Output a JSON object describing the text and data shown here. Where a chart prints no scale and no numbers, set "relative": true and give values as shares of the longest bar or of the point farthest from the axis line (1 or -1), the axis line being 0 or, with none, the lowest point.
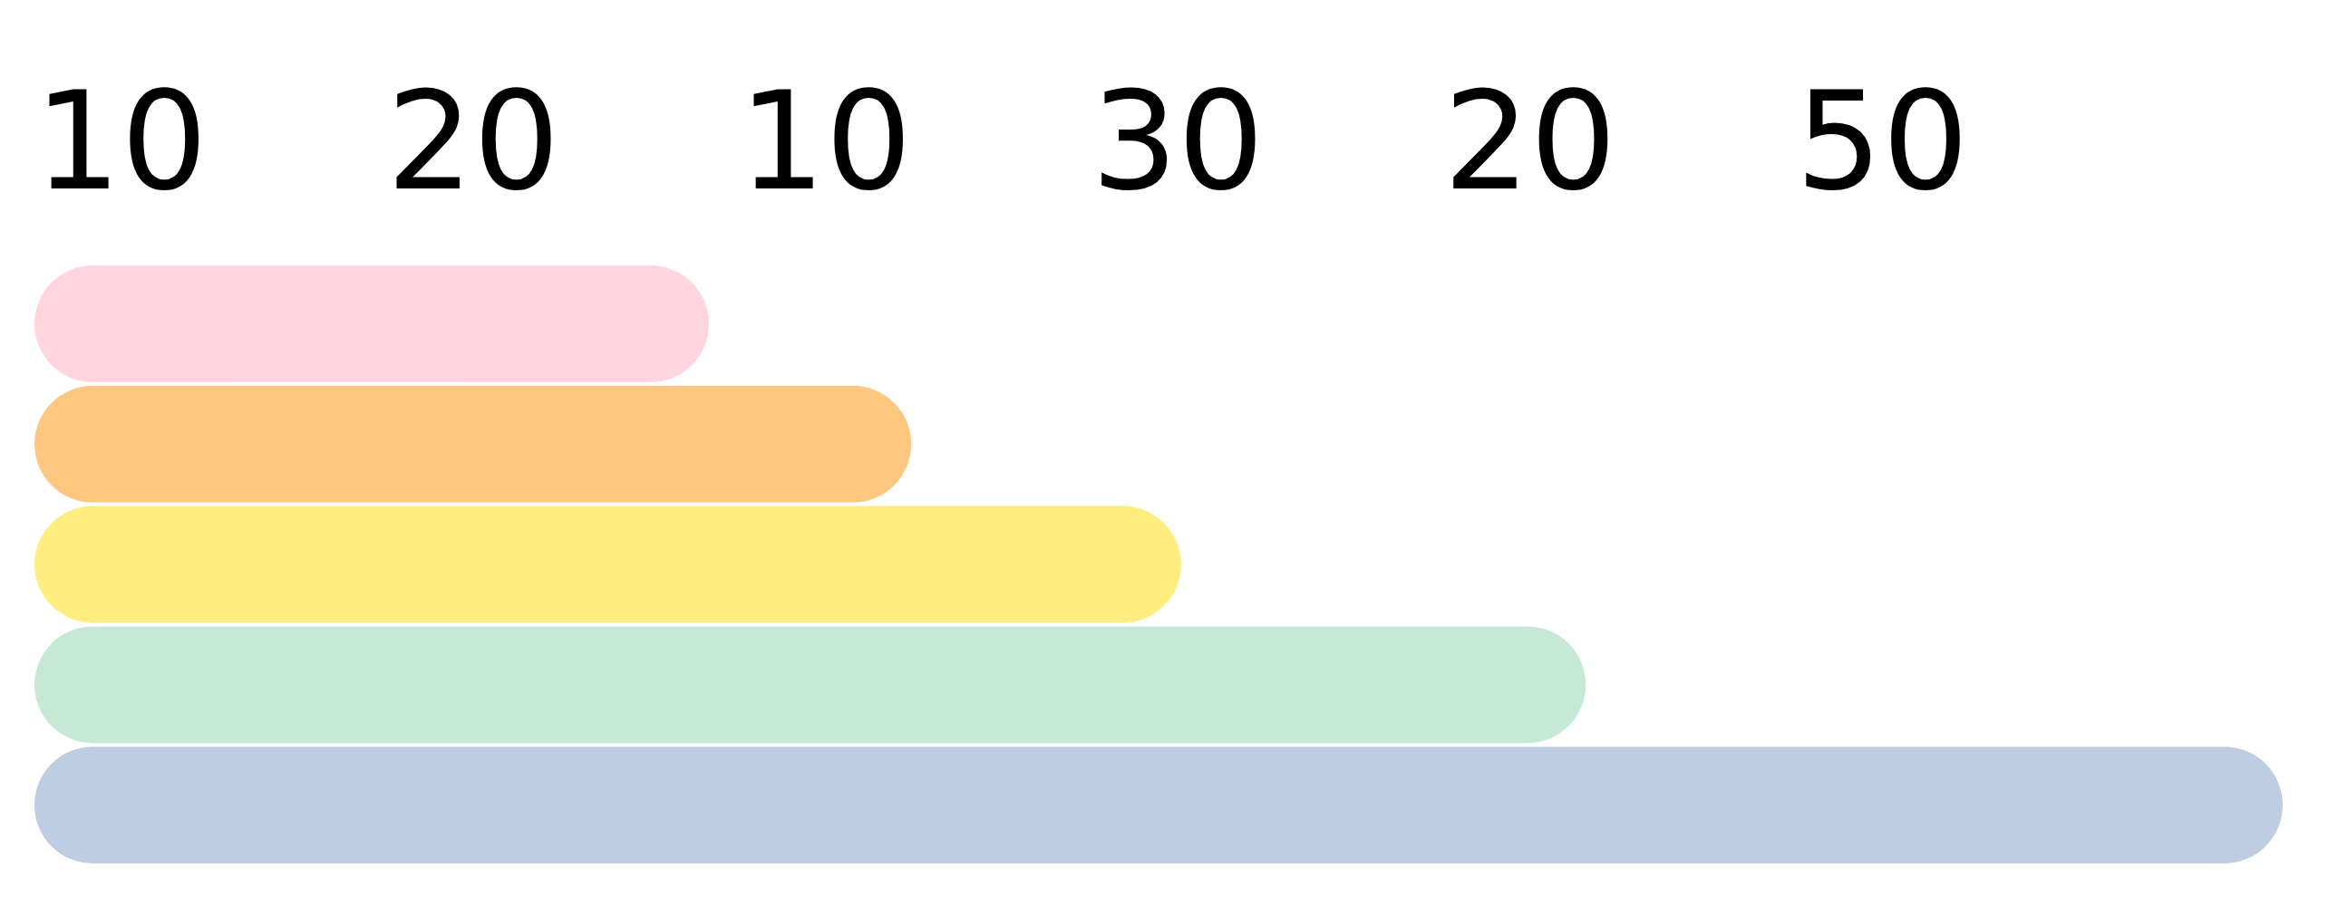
{
  "chart_data": {
    "type": "bar",
    "orientation": "horizontal",
    "relative": true,
    "title": "10 20 10 30 20 50",
    "categories": [
      null,
      null,
      null,
      null,
      null
    ],
    "values": [
      0.3,
      0.39,
      0.51,
      0.69,
      1
    ],
    "colors": [
      "#ffd5e0",
      "#fec780",
      "#ffed80",
      "#c6e9d6",
      "#bfcde2"
    ]
  }
}
